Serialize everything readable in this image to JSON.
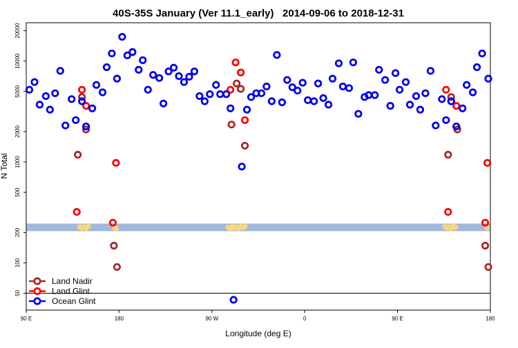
{
  "chart_data": {
    "type": "scatter",
    "title": "40S-35S January (Ver 11.1_early)   2014-09-06 to 2018-12-31",
    "x_label": "Longitude (deg E)",
    "y_label": "N Total",
    "xlim": [
      90,
      540
    ],
    "xticks": [
      {
        "value": 90,
        "label": "90 E"
      },
      {
        "value": 180,
        "label": "180"
      },
      {
        "value": 270,
        "label": "90 W"
      },
      {
        "value": 360,
        "label": "0"
      },
      {
        "value": 450,
        "label": "90 E"
      },
      {
        "value": 540,
        "label": "180"
      }
    ],
    "ylim": [
      34,
      24000
    ],
    "ylog": true,
    "yticks": [
      50,
      100,
      200,
      500,
      1000,
      2000,
      5000,
      10000,
      20000
    ],
    "hline": 50,
    "band": {
      "y": [
        206,
        245
      ],
      "color": "#a3b9dc"
    },
    "highlight_points": {
      "color": "#f8d878",
      "x": [
        142,
        144,
        146,
        148,
        150,
        176,
        177,
        286,
        288,
        290,
        292,
        294,
        296,
        298,
        300,
        302,
        496,
        498,
        500,
        502,
        504,
        506,
        537
      ],
      "y": [
        228,
        222,
        226,
        220,
        230,
        222,
        218,
        224,
        220,
        228,
        222,
        226,
        220,
        228,
        224,
        230,
        228,
        222,
        226,
        220,
        230,
        226,
        222
      ]
    },
    "legend": "bottom-left",
    "series": [
      {
        "name": "Land Nadir",
        "color": "#a52a2a",
        "x": [
          140,
          144,
          148,
          175,
          178,
          289,
          294,
          298,
          302,
          499,
          502,
          508,
          535,
          538
        ],
        "y": [
          1180,
          4400,
          2100,
          148,
          91,
          2350,
          6000,
          5300,
          1450,
          1180,
          4400,
          2100,
          148,
          91
        ]
      },
      {
        "name": "Land Glint",
        "color": "#ff0000",
        "x": [
          144,
          148,
          139,
          174,
          177,
          288,
          293,
          298,
          302,
          497,
          499,
          507,
          535,
          537
        ],
        "y": [
          5200,
          3600,
          320,
          250,
          980,
          5200,
          9700,
          7700,
          2600,
          5200,
          320,
          3600,
          250,
          980
        ]
      },
      {
        "name": "Ocean Glint",
        "color": "#0000ee",
        "x": [
          93,
          98,
          103,
          109,
          113,
          118,
          123,
          128,
          134,
          138,
          144,
          148,
          154,
          158,
          164,
          168,
          173,
          178,
          183,
          188,
          193,
          199,
          203,
          208,
          213,
          219,
          223,
          228,
          233,
          238,
          243,
          248,
          253,
          258,
          263,
          268,
          274,
          278,
          284,
          288,
          291,
          299,
          304,
          308,
          313,
          318,
          323,
          328,
          333,
          338,
          343,
          348,
          353,
          358,
          363,
          369,
          373,
          378,
          383,
          387,
          393,
          397,
          403,
          407,
          412,
          418,
          422,
          428,
          432,
          438,
          443,
          448,
          452,
          458,
          462,
          468,
          472,
          477,
          482,
          487,
          493,
          497,
          502,
          507,
          513,
          517,
          523,
          527,
          532,
          538
        ],
        "y": [
          5200,
          6200,
          3700,
          4500,
          3300,
          4800,
          8000,
          2300,
          4200,
          2600,
          4000,
          2250,
          3400,
          5800,
          4900,
          8700,
          11900,
          6700,
          17400,
          11400,
          12300,
          8200,
          10200,
          5200,
          7300,
          6800,
          3800,
          7900,
          8600,
          7100,
          6200,
          7000,
          7900,
          4500,
          4000,
          4700,
          5800,
          4700,
          4700,
          3400,
          43,
          900,
          3300,
          4400,
          4800,
          4800,
          5600,
          4000,
          11500,
          3900,
          6500,
          5500,
          5100,
          6100,
          4100,
          4000,
          6000,
          4300,
          3700,
          6700,
          9500,
          5600,
          5400,
          9700,
          3000,
          4400,
          4600,
          4600,
          8200,
          6500,
          3600,
          7600,
          5200,
          6200,
          3700,
          4500,
          3300,
          4800,
          8000,
          2300,
          4200,
          2600,
          4000,
          2250,
          3400,
          5800,
          4900,
          8700,
          11900,
          6700
        ]
      }
    ]
  }
}
